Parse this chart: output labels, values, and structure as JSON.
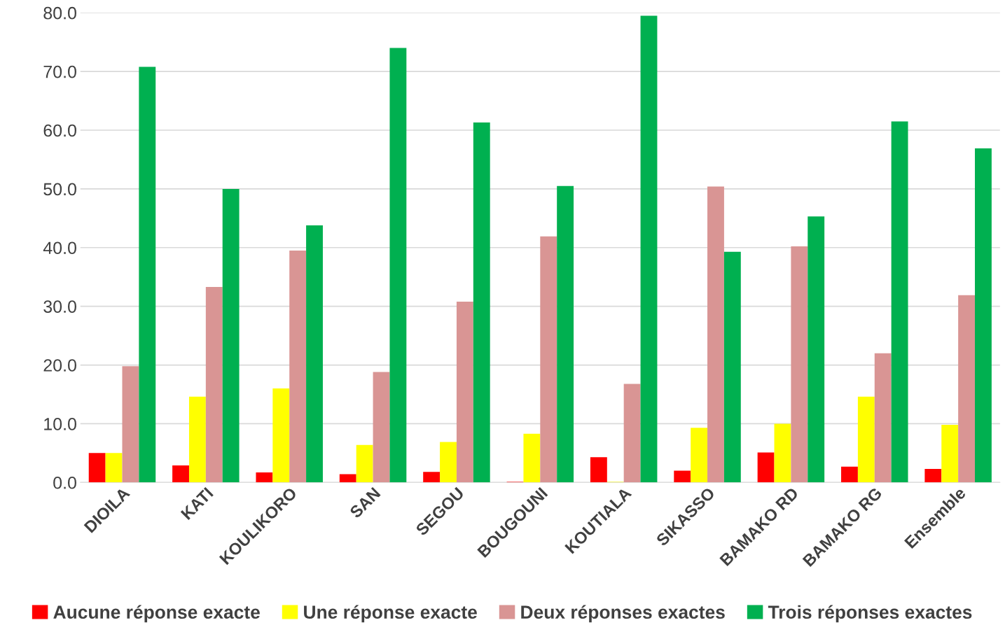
{
  "chart_data": {
    "type": "bar",
    "categories": [
      "DIOILA",
      "KATI",
      "KOULIKORO",
      "SAN",
      "SEGOU",
      "BOUGOUNI",
      "KOUTIALA",
      "SIKASSO",
      "BAMAKO RD",
      "BAMAKO RG",
      "Ensemble"
    ],
    "series": [
      {
        "name": "Aucune réponse exacte",
        "color": "#ff0000",
        "values": [
          5.0,
          2.9,
          1.7,
          1.4,
          1.8,
          0.1,
          4.3,
          2.0,
          5.1,
          2.7,
          2.3
        ]
      },
      {
        "name": "Une réponse exacte",
        "color": "#ffff00",
        "values": [
          5.0,
          14.6,
          16.0,
          6.4,
          6.9,
          8.3,
          0.1,
          9.3,
          10.0,
          14.6,
          9.8
        ]
      },
      {
        "name": "Deux réponses exactes",
        "color": "#d99594",
        "values": [
          19.8,
          33.3,
          39.5,
          18.8,
          30.8,
          41.9,
          16.8,
          50.4,
          40.2,
          22.0,
          31.9
        ]
      },
      {
        "name": "Trois réponses exactes",
        "color": "#00b050",
        "values": [
          70.8,
          50.0,
          43.8,
          74.0,
          61.3,
          50.5,
          79.5,
          39.3,
          45.3,
          61.5,
          56.9
        ]
      }
    ],
    "ylim": [
      0,
      80
    ],
    "yticks": [
      {
        "value": 0,
        "label": "0.0"
      },
      {
        "value": 10,
        "label": "10.0"
      },
      {
        "value": 20,
        "label": "20.0"
      },
      {
        "value": 30,
        "label": "30.0"
      },
      {
        "value": 40,
        "label": "40.0"
      },
      {
        "value": 50,
        "label": "50.0"
      },
      {
        "value": 60,
        "label": "60.0"
      },
      {
        "value": 70,
        "label": "70.0"
      },
      {
        "value": 80,
        "label": "80.0"
      }
    ],
    "grid": "y",
    "legend": "bottom"
  }
}
